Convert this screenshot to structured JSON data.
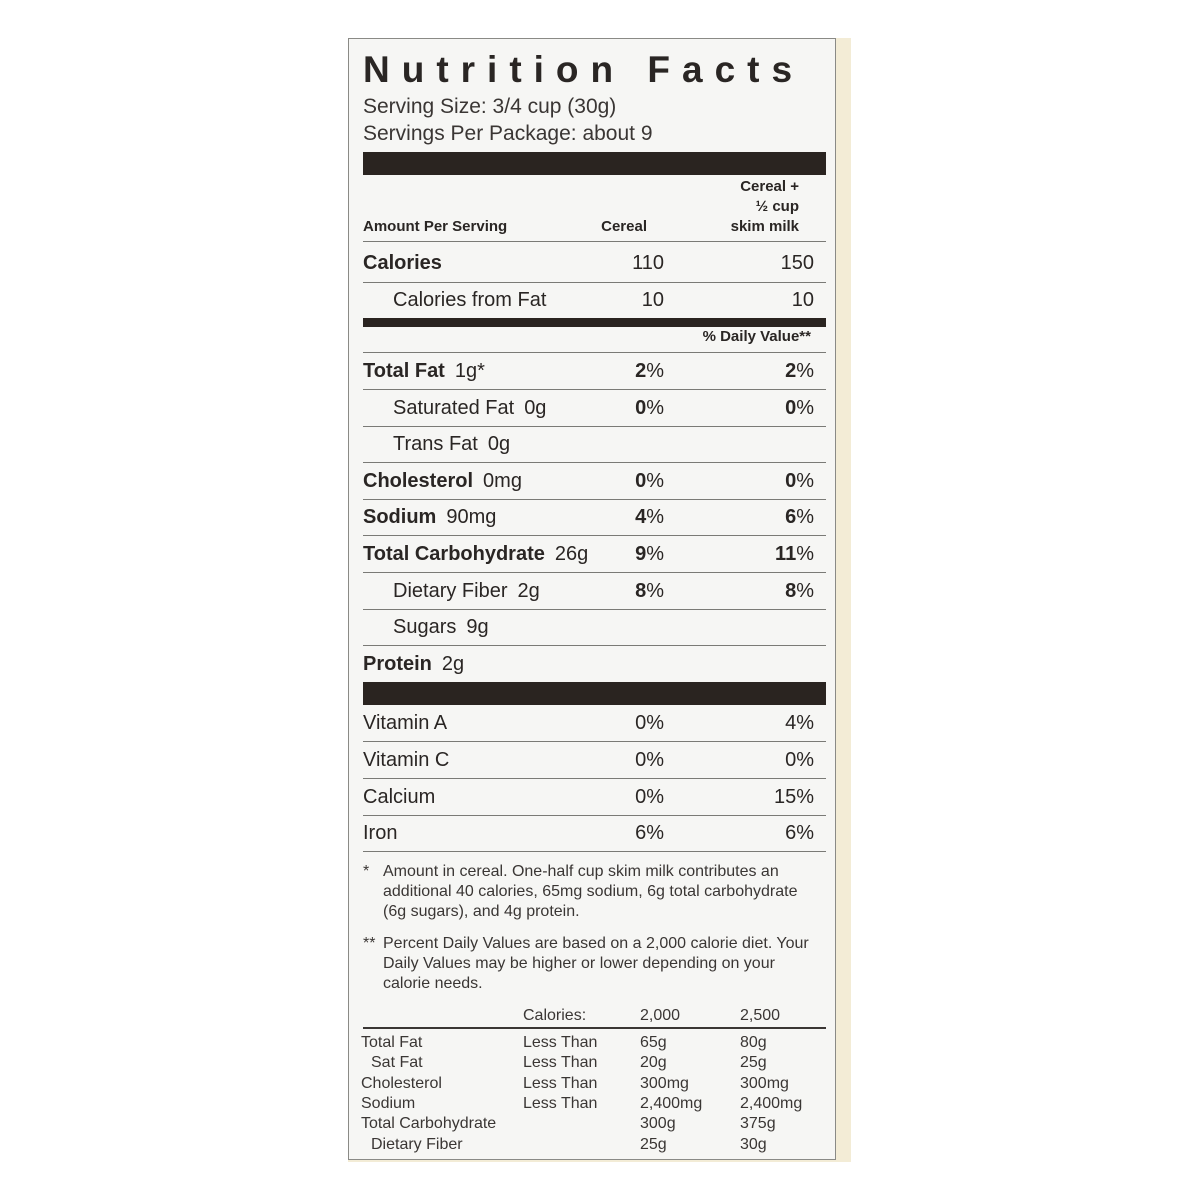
{
  "title": "Nutrition Facts",
  "serving_size": "Serving Size: 3/4 cup (30g)",
  "servings_per_package": "Servings Per Package: about 9",
  "header": {
    "amount_per_serving": "Amount Per Serving",
    "col1": "Cereal",
    "col2_lines": [
      "Cereal +",
      "½ cup",
      "skim milk"
    ]
  },
  "calories": {
    "label": "Calories",
    "cereal": "110",
    "milk": "150"
  },
  "calories_from_fat": {
    "label": "Calories from Fat",
    "cereal": "10",
    "milk": "10"
  },
  "daily_value_header": "% Daily Value**",
  "nutrients": [
    {
      "name": "Total Fat",
      "amount": "1g*",
      "cereal": "2",
      "milk": "2",
      "bold": true,
      "indent": false
    },
    {
      "name": "Saturated Fat",
      "amount": "0g",
      "cereal": "0",
      "milk": "0",
      "bold": false,
      "indent": true
    },
    {
      "name": "Trans Fat",
      "amount": "0g",
      "cereal": "",
      "milk": "",
      "bold": false,
      "indent": true
    },
    {
      "name": "Cholesterol",
      "amount": "0mg",
      "cereal": "0",
      "milk": "0",
      "bold": true,
      "indent": false
    },
    {
      "name": "Sodium",
      "amount": "90mg",
      "cereal": "4",
      "milk": "6",
      "bold": true,
      "indent": false
    },
    {
      "name": "Total Carbohydrate",
      "amount": "26g",
      "cereal": "9",
      "milk": "11",
      "bold": true,
      "indent": false
    },
    {
      "name": "Dietary Fiber",
      "amount": "2g",
      "cereal": "8",
      "milk": "8",
      "bold": false,
      "indent": true
    },
    {
      "name": "Sugars",
      "amount": "9g",
      "cereal": "",
      "milk": "",
      "bold": false,
      "indent": true
    },
    {
      "name": "Protein",
      "amount": "2g",
      "cereal": "",
      "milk": "",
      "bold": true,
      "indent": false
    }
  ],
  "vitamins": [
    {
      "name": "Vitamin A",
      "cereal": "0%",
      "milk": "4%"
    },
    {
      "name": "Vitamin C",
      "cereal": "0%",
      "milk": "0%"
    },
    {
      "name": "Calcium",
      "cereal": "0%",
      "milk": "15%"
    },
    {
      "name": "Iron",
      "cereal": "6%",
      "milk": "6%"
    }
  ],
  "footnotes": [
    {
      "mark": "*",
      "text": "Amount in cereal. One-half cup skim milk contributes an additional 40 calories, 65mg sodium, 6g total carbohydrate (6g sugars), and 4g protein."
    },
    {
      "mark": "**",
      "text": "Percent Daily Values are based on a 2,000 calorie diet. Your Daily Values may be higher or lower depending on your calorie needs."
    }
  ],
  "dv_table": {
    "header": [
      "",
      "Calories:",
      "2,000",
      "2,500"
    ],
    "rows": [
      [
        "Total Fat",
        "Less Than",
        "65g",
        "80g"
      ],
      [
        "  Sat Fat",
        "Less Than",
        "20g",
        "25g"
      ],
      [
        "Cholesterol",
        "Less Than",
        "300mg",
        "300mg"
      ],
      [
        "Sodium",
        "Less Than",
        "2,400mg",
        "2,400mg"
      ],
      [
        "Total Carbohydrate",
        "",
        "300g",
        "375g"
      ],
      [
        "  Dietary Fiber",
        "",
        "25g",
        "30g"
      ]
    ]
  }
}
